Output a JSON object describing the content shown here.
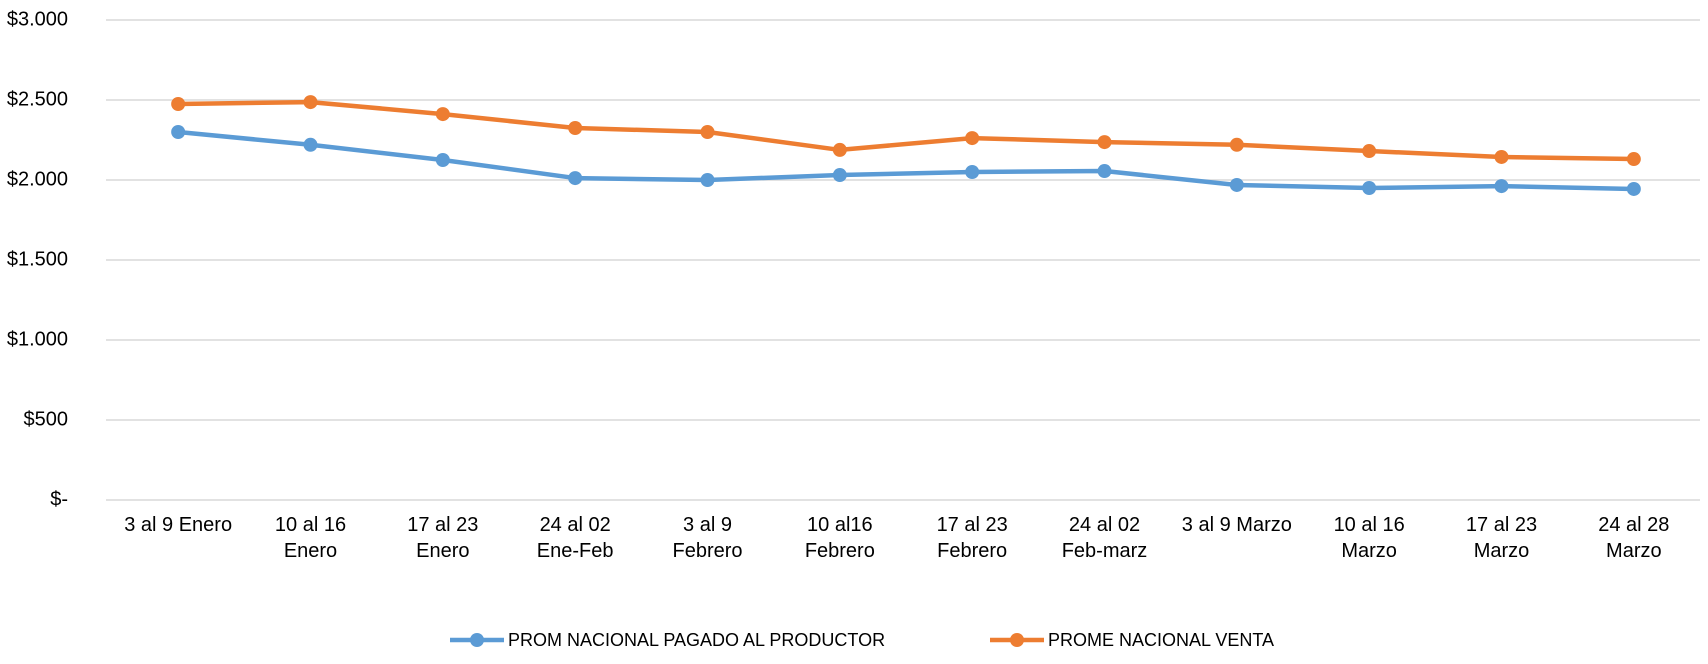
{
  "chart_data": {
    "type": "line",
    "categories": [
      "3 al 9 Enero",
      "10 al 16\nEnero",
      "17 al 23\nEnero",
      "24 al 02\nEne-Feb",
      "3 al 9\nFebrero",
      "10 al16\nFebrero",
      "17 al 23\nFebrero",
      "24 al 02\nFeb-marz",
      "3 al 9 Marzo",
      "10 al 16\nMarzo",
      "17 al 23\nMarzo",
      "24 al 28\nMarzo"
    ],
    "series": [
      {
        "name": "PROM NACIONAL PAGADO AL PRODUCTOR",
        "color": "#5b9bd5",
        "values": [
          2300,
          2220,
          2125,
          2012,
          2000,
          2031,
          2050,
          2056,
          1969,
          1950,
          1962,
          1944
        ]
      },
      {
        "name": "PROME NACIONAL VENTA",
        "color": "#ed7d31",
        "values": [
          2475,
          2487,
          2412,
          2325,
          2300,
          2188,
          2262,
          2237,
          2220,
          2181,
          2144,
          2131
        ]
      }
    ],
    "ylim": [
      0,
      3000
    ],
    "yticks": [
      {
        "value": 0,
        "label": "$-"
      },
      {
        "value": 500,
        "label": "$500"
      },
      {
        "value": 1000,
        "label": "$1.000"
      },
      {
        "value": 1500,
        "label": "$1.500"
      },
      {
        "value": 2000,
        "label": "$2.000"
      },
      {
        "value": 2500,
        "label": "$2.500"
      },
      {
        "value": 3000,
        "label": "$3.000"
      }
    ],
    "grid": true,
    "legend": "bottom"
  }
}
